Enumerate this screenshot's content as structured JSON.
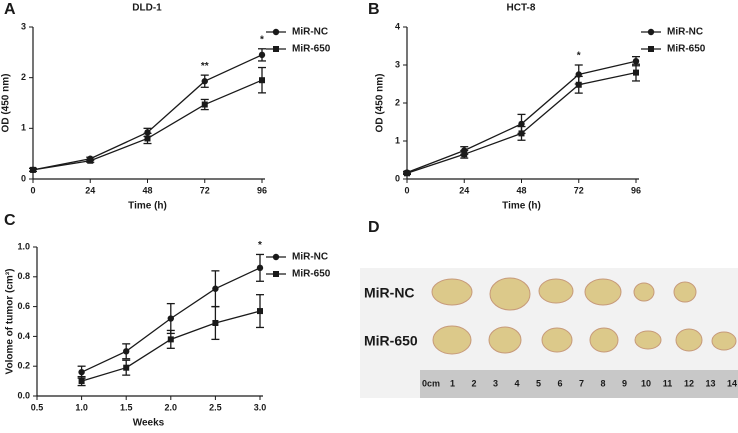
{
  "panels": [
    "A",
    "B",
    "C",
    "D"
  ],
  "chart_data": [
    {
      "type": "line",
      "title": "DLD-1",
      "xlabel": "Time (h)",
      "ylabel": "OD (450 nm)",
      "x": [
        0,
        24,
        48,
        72,
        96
      ],
      "xlim": [
        0,
        96
      ],
      "xticks": [
        0,
        24,
        48,
        72,
        96
      ],
      "ylim": [
        0,
        3
      ],
      "yticks": [
        0,
        1,
        2,
        3
      ],
      "series": [
        {
          "name": "MiR-NC",
          "marker": "circle",
          "color": "#1a1a1a",
          "values": [
            0.18,
            0.4,
            0.92,
            1.93,
            2.45
          ],
          "errors": [
            0.03,
            0.03,
            0.08,
            0.12,
            0.12
          ]
        },
        {
          "name": "MiR-650",
          "marker": "square",
          "color": "#1a1a1a",
          "values": [
            0.18,
            0.36,
            0.8,
            1.47,
            1.95
          ],
          "errors": [
            0.03,
            0.03,
            0.1,
            0.1,
            0.25
          ]
        }
      ],
      "annotations": [
        {
          "text": "**",
          "x": 72
        },
        {
          "text": "*",
          "x": 96
        }
      ]
    },
    {
      "type": "line",
      "title": "HCT-8",
      "xlabel": "Time (h)",
      "ylabel": "OD (450 nm)",
      "x": [
        0,
        24,
        48,
        72,
        96
      ],
      "xlim": [
        0,
        96
      ],
      "xticks": [
        0,
        24,
        48,
        72,
        96
      ],
      "ylim": [
        0,
        4
      ],
      "yticks": [
        0,
        1,
        2,
        3,
        4
      ],
      "series": [
        {
          "name": "MiR-NC",
          "marker": "circle",
          "color": "#1a1a1a",
          "values": [
            0.17,
            0.75,
            1.45,
            2.75,
            3.1
          ],
          "errors": [
            0.03,
            0.1,
            0.25,
            0.25,
            0.12
          ]
        },
        {
          "name": "MiR-650",
          "marker": "square",
          "color": "#1a1a1a",
          "values": [
            0.15,
            0.65,
            1.2,
            2.48,
            2.8
          ],
          "errors": [
            0.03,
            0.1,
            0.18,
            0.22,
            0.22
          ]
        }
      ],
      "annotations": [
        {
          "text": "*",
          "x": 72
        }
      ]
    },
    {
      "type": "line",
      "xlabel": "Weeks",
      "ylabel": "Volome of tumor (cm³)",
      "x": [
        1,
        1.5,
        2,
        2.5,
        3
      ],
      "xlim": [
        0.5,
        3
      ],
      "xticks": [
        0.5,
        {
          "value": 1,
          "label": "1.0"
        },
        1.5,
        {
          "value": 2,
          "label": "2.0"
        },
        2.5,
        {
          "value": 3,
          "label": "3.0"
        }
      ],
      "ylim": [
        0,
        1
      ],
      "yticks": [
        {
          "value": 0,
          "label": "0.0"
        },
        0.2,
        0.4,
        0.6,
        0.8,
        {
          "value": 1,
          "label": "1.0"
        }
      ],
      "series": [
        {
          "name": "MiR-NC",
          "marker": "circle",
          "color": "#1a1a1a",
          "values": [
            0.16,
            0.3,
            0.52,
            0.72,
            0.86
          ],
          "errors": [
            0.04,
            0.05,
            0.1,
            0.12,
            0.09
          ]
        },
        {
          "name": "MiR-650",
          "marker": "square",
          "color": "#1a1a1a",
          "values": [
            0.1,
            0.19,
            0.38,
            0.49,
            0.57
          ],
          "errors": [
            0.03,
            0.05,
            0.06,
            0.11,
            0.11
          ]
        }
      ],
      "annotations": [
        {
          "text": "*",
          "x": 3
        }
      ]
    }
  ],
  "photo": {
    "row_labels": [
      "MiR-NC",
      "MiR-650"
    ],
    "ruler_labels": [
      "0cm",
      "1",
      "2",
      "3",
      "4",
      "5",
      "6",
      "7",
      "8",
      "9",
      "10",
      "11",
      "12",
      "13",
      "14"
    ]
  }
}
